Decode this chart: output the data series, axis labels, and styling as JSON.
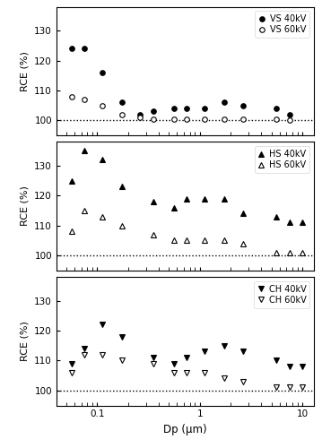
{
  "dp_vs": [
    0.056,
    0.075,
    0.112,
    0.175,
    0.263,
    0.35,
    0.56,
    0.75,
    1.12,
    1.75,
    2.63,
    5.6,
    7.5
  ],
  "vs_40kv": [
    124,
    124,
    116,
    106,
    102,
    103,
    104,
    104,
    104,
    106,
    105,
    104,
    102
  ],
  "vs_60kv": [
    108,
    107,
    105,
    102,
    101,
    100.5,
    100.5,
    100.5,
    100.5,
    100.5,
    100.5,
    100.5,
    100
  ],
  "dp_hs": [
    0.056,
    0.075,
    0.112,
    0.175,
    0.35,
    0.56,
    0.75,
    1.12,
    1.75,
    2.63,
    5.6,
    7.5,
    10.0
  ],
  "hs_40kv": [
    125,
    135,
    132,
    123,
    118,
    116,
    119,
    119,
    119,
    114,
    113,
    111,
    111
  ],
  "hs_60kv": [
    108,
    115,
    113,
    110,
    107,
    105,
    105,
    105,
    105,
    104,
    101,
    101,
    101
  ],
  "dp_ch": [
    0.056,
    0.075,
    0.112,
    0.175,
    0.35,
    0.56,
    0.75,
    1.12,
    1.75,
    2.63,
    5.6,
    7.5,
    10.0
  ],
  "ch_40kv": [
    109,
    114,
    122,
    118,
    111,
    109,
    111,
    113,
    115,
    113,
    110,
    108,
    108
  ],
  "ch_60kv": [
    106,
    112,
    112,
    110,
    109,
    106,
    106,
    106,
    104,
    103,
    101,
    101,
    101
  ],
  "ylim": [
    95,
    138
  ],
  "yticks": [
    100,
    110,
    120,
    130
  ],
  "xlim_min": 0.04,
  "xlim_max": 13,
  "xlabel": "Dp (μm)",
  "ylabel": "RCE (%)",
  "dotted_y": 100,
  "legend_vs": [
    "VS 40kV",
    "VS 60kV"
  ],
  "legend_hs": [
    "HS 40kV",
    "HS 60kV"
  ],
  "legend_ch": [
    "CH 40kV",
    "CH 60kV"
  ],
  "marker_size": 4,
  "marker_edge_width": 0.8
}
